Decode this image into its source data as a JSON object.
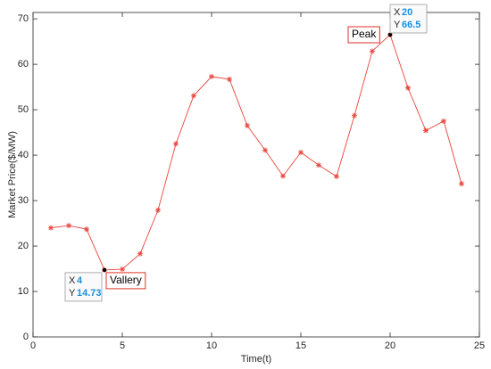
{
  "chart_data": {
    "type": "line",
    "x_label": "Time(t)",
    "y_label": "Market Price($/MW)",
    "x": [
      1,
      2,
      3,
      4,
      5,
      6,
      7,
      8,
      9,
      10,
      11,
      12,
      13,
      14,
      15,
      16,
      17,
      18,
      19,
      20,
      21,
      22,
      23,
      24
    ],
    "values": [
      24,
      24.5,
      23.7,
      14.73,
      14.9,
      18.3,
      27.9,
      42.5,
      53.1,
      57.3,
      56.7,
      46.5,
      41.1,
      35.4,
      40.6,
      37.8,
      35.3,
      48.7,
      62.9,
      66.5,
      54.8,
      45.4,
      47.5,
      33.7
    ],
    "color": "#e8453c",
    "xlim": [
      0,
      25
    ],
    "xticks": [
      0,
      5,
      10,
      15,
      20,
      25
    ],
    "ylim": [
      0,
      71.4
    ],
    "yticks": [
      0,
      10,
      20,
      30,
      40,
      50,
      60,
      70
    ],
    "datatips": [
      {
        "x_label": "X",
        "x": 4,
        "y_label": "Y",
        "y": 14.73
      },
      {
        "x_label": "X",
        "x": 20,
        "y_label": "Y",
        "y": 66.5
      }
    ],
    "annotations": [
      {
        "text": "Vallery"
      },
      {
        "text": "Peak"
      }
    ]
  }
}
